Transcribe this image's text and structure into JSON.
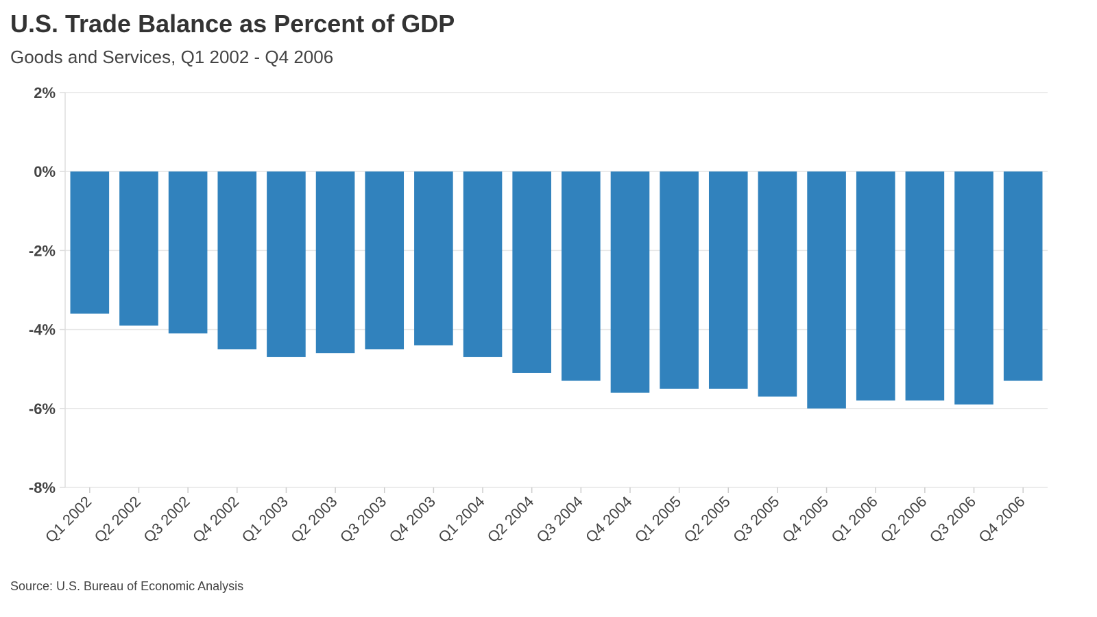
{
  "chart_data": {
    "type": "bar",
    "title": "U.S. Trade Balance as Percent of GDP",
    "subtitle": "Goods and Services, Q1 2002 - Q4 2006",
    "source": "Source: U.S. Bureau of Economic Analysis",
    "xlabel": "",
    "ylabel": "",
    "categories": [
      "Q1 2002",
      "Q2 2002",
      "Q3 2002",
      "Q4 2002",
      "Q1 2003",
      "Q2 2003",
      "Q3 2003",
      "Q4 2003",
      "Q1 2004",
      "Q2 2004",
      "Q3 2004",
      "Q4 2004",
      "Q1 2005",
      "Q2 2005",
      "Q3 2005",
      "Q4 2005",
      "Q1 2006",
      "Q2 2006",
      "Q3 2006",
      "Q4 2006"
    ],
    "values": [
      -3.6,
      -3.9,
      -4.1,
      -4.5,
      -4.7,
      -4.6,
      -4.5,
      -4.4,
      -4.7,
      -5.1,
      -5.3,
      -5.6,
      -5.5,
      -5.5,
      -5.7,
      -6.0,
      -5.8,
      -5.8,
      -5.9,
      -5.3
    ],
    "ylim": [
      -8,
      2
    ],
    "yticks": [
      2,
      0,
      -2,
      -4,
      -6,
      -8
    ],
    "ytick_labels": [
      "2%",
      "0%",
      "-2%",
      "-4%",
      "-6%",
      "-8%"
    ],
    "grid": true,
    "bar_color": "#3182bd"
  }
}
